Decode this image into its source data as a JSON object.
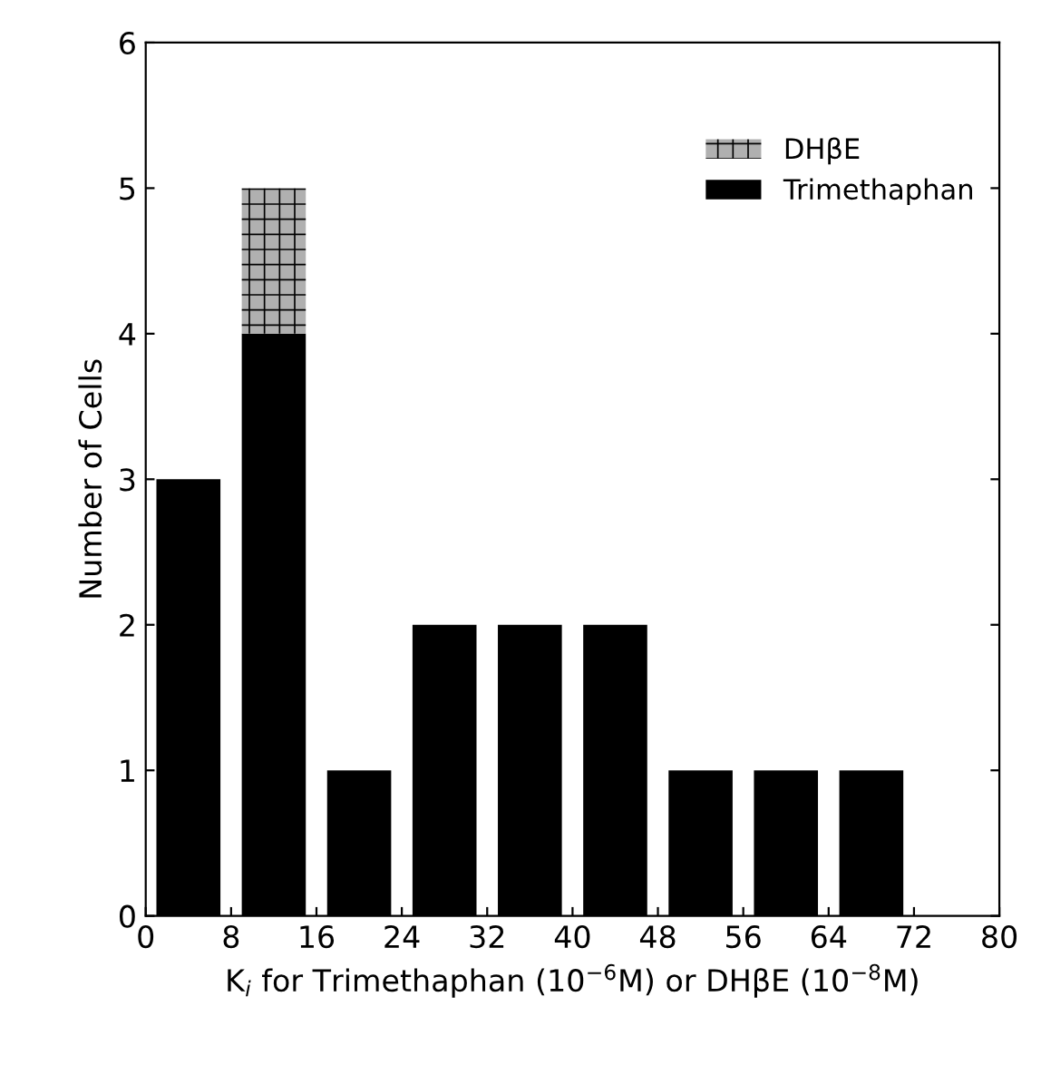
{
  "chart_data": {
    "type": "bar",
    "stacked": true,
    "xlabel": "K$_{i}$ for Trimethaphan (10$^{−6}$M) or DHβE (10$^{−8}$M)",
    "ylabel": "Number of Cells",
    "x": [
      4,
      12,
      20,
      28,
      36,
      44,
      52,
      60,
      68
    ],
    "series": [
      {
        "name": "Trimethaphan",
        "color": "#000000",
        "values": [
          3,
          4,
          1,
          2,
          2,
          2,
          1,
          1,
          1
        ]
      },
      {
        "name": "DHβE",
        "color": "#b0b0b0",
        "values": [
          null,
          1,
          null,
          null,
          null,
          null,
          null,
          null,
          null
        ]
      }
    ],
    "xlim": [
      0,
      80
    ],
    "xticks": [
      0,
      8,
      16,
      24,
      32,
      40,
      48,
      56,
      64,
      72,
      80
    ],
    "ylim": [
      0,
      6
    ],
    "yticks": [
      0,
      1,
      2,
      3,
      4,
      5,
      6
    ],
    "grid": false,
    "legend": "top right"
  }
}
